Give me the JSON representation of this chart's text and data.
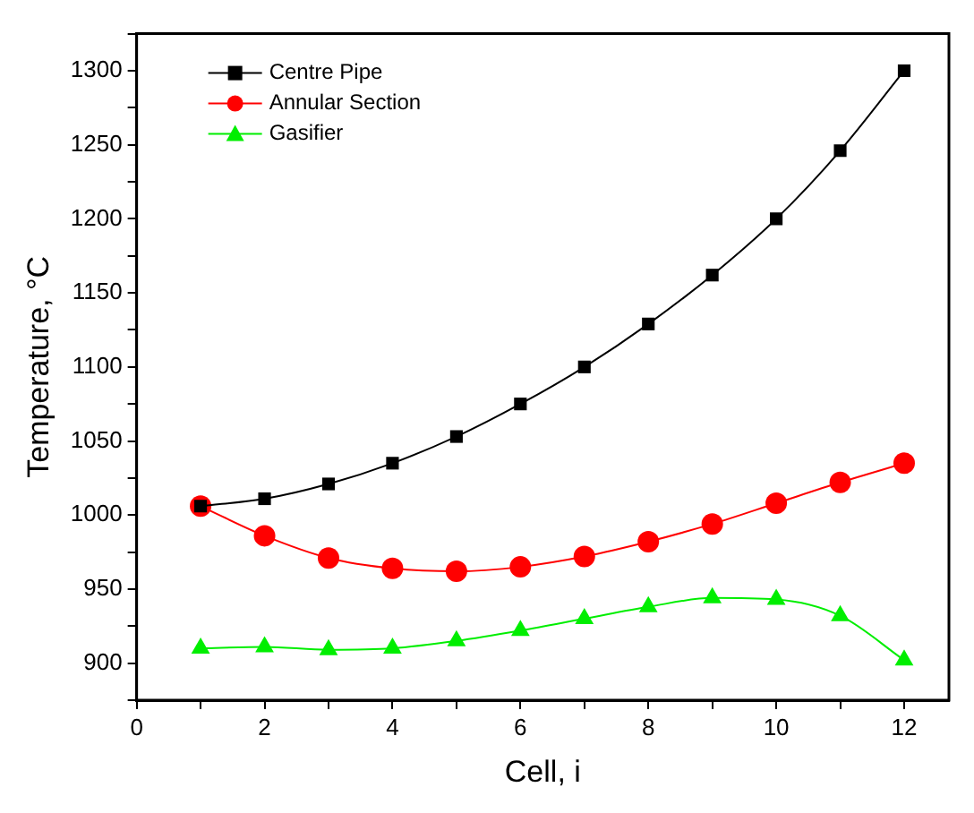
{
  "chart_data": {
    "type": "line",
    "xlabel": "Cell, i",
    "ylabel": "Temperature, °C",
    "x": [
      1,
      2,
      3,
      4,
      5,
      6,
      7,
      8,
      9,
      10,
      11,
      12
    ],
    "series": [
      {
        "name": "Centre Pipe",
        "color": "#000000",
        "marker": "square",
        "values": [
          1006,
          1011,
          1021,
          1035,
          1053,
          1075,
          1100,
          1129,
          1162,
          1200,
          1246,
          1300
        ]
      },
      {
        "name": "Annular Section",
        "color": "#ff0000",
        "marker": "circle",
        "values": [
          1006,
          986,
          971,
          964,
          962,
          965,
          972,
          982,
          994,
          1008,
          1022,
          1035
        ]
      },
      {
        "name": "Gasifier",
        "color": "#00ee00",
        "marker": "triangle",
        "values": [
          910,
          911,
          909,
          910,
          915,
          922,
          930,
          938,
          944,
          943,
          932,
          902
        ]
      }
    ],
    "xlim": [
      0,
      12.7
    ],
    "xticks": [
      0,
      {
        "value": 1,
        "label": null
      },
      2,
      {
        "value": 3,
        "label": null
      },
      4,
      {
        "value": 5,
        "label": null
      },
      6,
      {
        "value": 7,
        "label": null
      },
      8,
      {
        "value": 9,
        "label": null
      },
      10,
      {
        "value": 11,
        "label": null
      },
      12
    ],
    "ylim": [
      875,
      1325
    ],
    "yticks": [
      {
        "value": 875,
        "label": null
      },
      900,
      {
        "value": 925,
        "label": null
      },
      950,
      {
        "value": 975,
        "label": null
      },
      1000,
      {
        "value": 1025,
        "label": null
      },
      1050,
      {
        "value": 1075,
        "label": null
      },
      1100,
      {
        "value": 1125,
        "label": null
      },
      1150,
      {
        "value": 1175,
        "label": null
      },
      1200,
      {
        "value": 1225,
        "label": null
      },
      1250,
      {
        "value": 1275,
        "label": null
      },
      1300,
      {
        "value": 1325,
        "label": null
      }
    ],
    "grid": false,
    "legend": "top left",
    "line_style": "solid"
  }
}
